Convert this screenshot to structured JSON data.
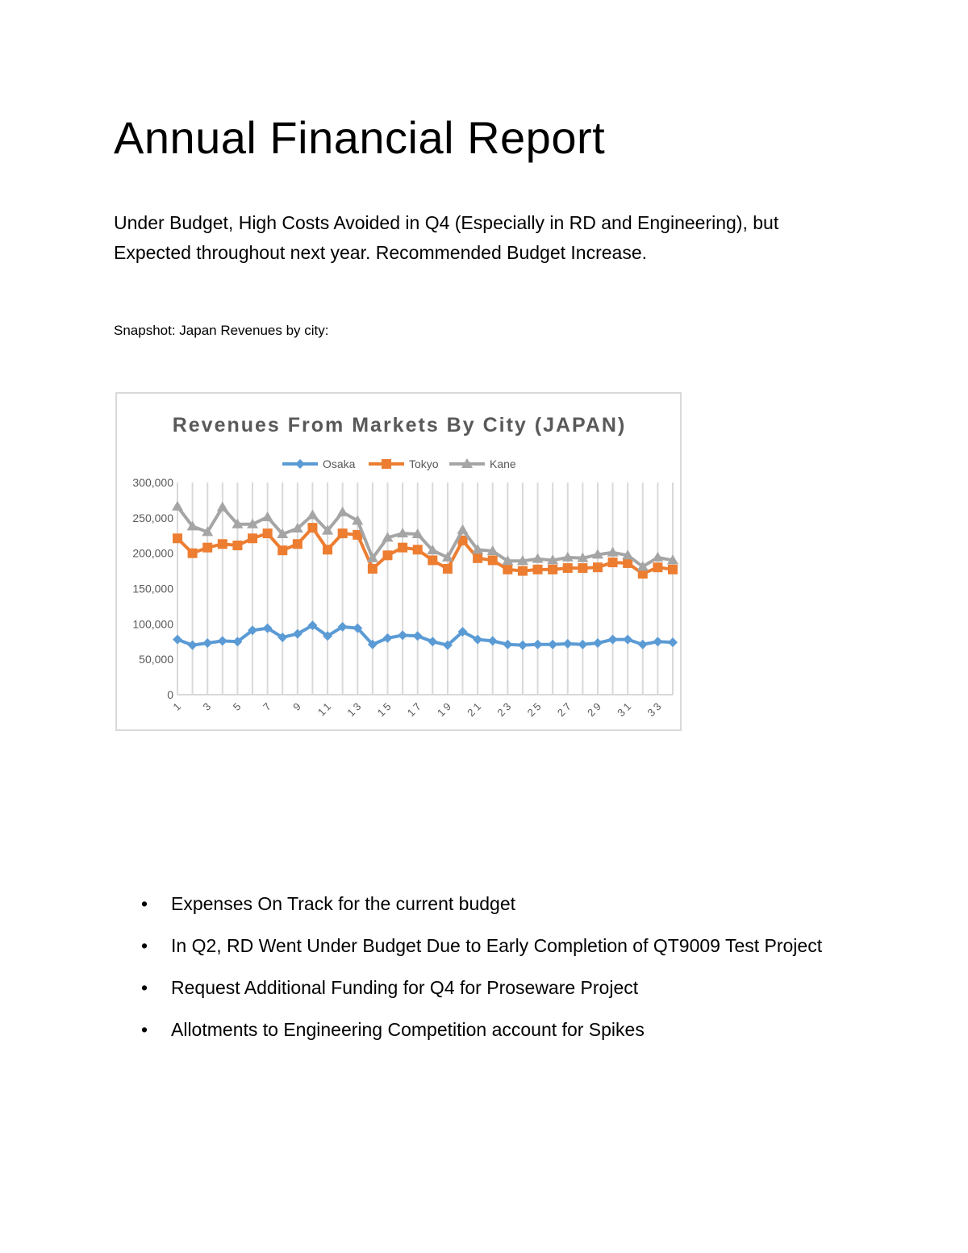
{
  "document": {
    "title": "Annual Financial Report",
    "subtitle": "Under Budget, High Costs Avoided in Q4 (Especially in RD and Engineering), but Expected throughout next year.  Recommended Budget Increase.",
    "snapshot_label": "Snapshot: Japan Revenues by city:",
    "bullets": [
      "Expenses On Track for the current budget",
      "In Q2, RD Went Under Budget Due to Early Completion of QT9009 Test Project",
      "Request Additional Funding for Q4 for Proseware Project",
      "Allotments to Engineering Competition account for Spikes"
    ],
    "bullet_glyph": "•"
  },
  "chart_data": {
    "type": "line",
    "title": "Revenues From Markets By City (JAPAN)",
    "xlabel": "",
    "ylabel": "",
    "x": [
      1,
      2,
      3,
      4,
      5,
      6,
      7,
      8,
      9,
      10,
      11,
      12,
      13,
      14,
      15,
      16,
      17,
      18,
      19,
      20,
      21,
      22,
      23,
      24,
      25,
      26,
      27,
      28,
      29,
      30,
      31,
      32,
      33,
      34
    ],
    "x_tick_labels": [
      "1",
      "3",
      "5",
      "7",
      "9",
      "11",
      "13",
      "15",
      "17",
      "19",
      "21",
      "23",
      "25",
      "27",
      "29",
      "31",
      "33"
    ],
    "ylim": [
      0,
      300000
    ],
    "y_ticks": [
      "0",
      "50,000",
      "100,000",
      "150,000",
      "200,000",
      "250,000",
      "300,000"
    ],
    "grid": "vertical",
    "legend": "top",
    "series": [
      {
        "name": "Osaka",
        "color": "#5b9bd5",
        "marker": "diamond",
        "values": [
          78000,
          70000,
          73000,
          76000,
          75000,
          91000,
          94000,
          81000,
          86000,
          98000,
          83000,
          96000,
          94000,
          71000,
          80000,
          84000,
          83000,
          75000,
          70000,
          89000,
          78000,
          76000,
          71000,
          70000,
          71000,
          71000,
          72000,
          71000,
          73000,
          78000,
          78000,
          71000,
          75000,
          74000
        ]
      },
      {
        "name": "Tokyo",
        "color": "#ed7d31",
        "marker": "square",
        "values": [
          221000,
          200000,
          208000,
          213000,
          211000,
          221000,
          228000,
          204000,
          213000,
          236000,
          205000,
          228000,
          226000,
          178000,
          197000,
          208000,
          205000,
          190000,
          178000,
          218000,
          193000,
          190000,
          177000,
          175000,
          177000,
          177000,
          179000,
          179000,
          180000,
          187000,
          186000,
          171000,
          180000,
          177000
        ]
      },
      {
        "name": "Kane",
        "color": "#a5a5a5",
        "marker": "triangle",
        "values": [
          266000,
          238000,
          230000,
          265000,
          241000,
          241000,
          251000,
          227000,
          235000,
          254000,
          232000,
          258000,
          246000,
          193000,
          222000,
          228000,
          227000,
          204000,
          194000,
          233000,
          205000,
          203000,
          189000,
          189000,
          192000,
          190000,
          194000,
          193000,
          198000,
          201000,
          197000,
          181000,
          194000,
          190000
        ]
      }
    ]
  }
}
